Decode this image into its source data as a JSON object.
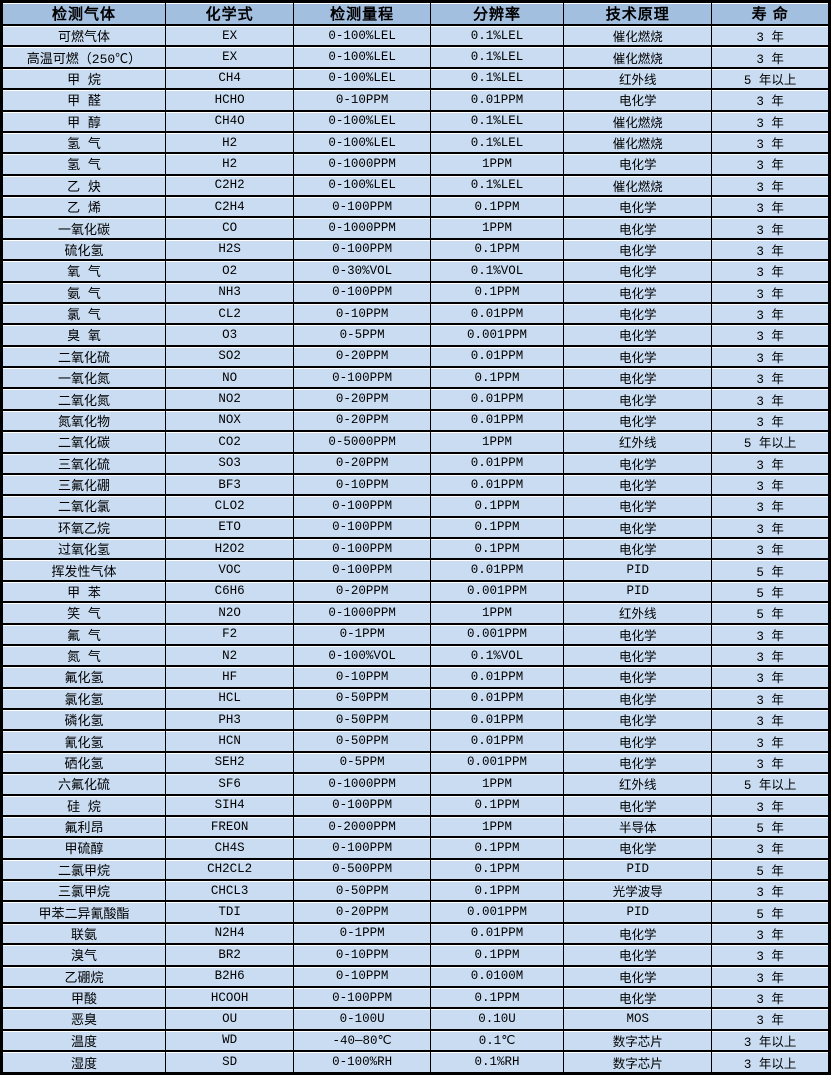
{
  "colors": {
    "header_bg": "#a3bfe0",
    "row_bg": "#c9dcf2",
    "border": "#000000",
    "text": "#000000"
  },
  "table": {
    "columns": [
      "检测气体",
      "化学式",
      "检测量程",
      "分辨率",
      "技术原理",
      "寿 命"
    ],
    "rows": [
      [
        "可燃气体",
        "EX",
        "0-100%LEL",
        "0.1%LEL",
        "催化燃烧",
        "3 年"
      ],
      [
        "高温可燃（250℃）",
        "EX",
        "0-100%LEL",
        "0.1%LEL",
        "催化燃烧",
        "3 年"
      ],
      [
        "甲 烷",
        "CH4",
        "0-100%LEL",
        "0.1%LEL",
        "红外线",
        "5 年以上"
      ],
      [
        "甲 醛",
        "HCHO",
        "0-10PPM",
        "0.01PPM",
        "电化学",
        "3 年"
      ],
      [
        "甲 醇",
        "CH4O",
        "0-100%LEL",
        "0.1%LEL",
        "催化燃烧",
        "3 年"
      ],
      [
        "氢 气",
        "H2",
        "0-100%LEL",
        "0.1%LEL",
        "催化燃烧",
        "3 年"
      ],
      [
        "氢 气",
        "H2",
        "0-1000PPM",
        "1PPM",
        "电化学",
        "3 年"
      ],
      [
        "乙 炔",
        "C2H2",
        "0-100%LEL",
        "0.1%LEL",
        "催化燃烧",
        "3 年"
      ],
      [
        "乙 烯",
        "C2H4",
        "0-100PPM",
        "0.1PPM",
        "电化学",
        "3 年"
      ],
      [
        "一氧化碳",
        "CO",
        "0-1000PPM",
        "1PPM",
        "电化学",
        "3 年"
      ],
      [
        "硫化氢",
        "H2S",
        "0-100PPM",
        "0.1PPM",
        "电化学",
        "3 年"
      ],
      [
        "氧 气",
        "O2",
        "0-30%VOL",
        "0.1%VOL",
        "电化学",
        "3 年"
      ],
      [
        "氨 气",
        "NH3",
        "0-100PPM",
        "0.1PPM",
        "电化学",
        "3 年"
      ],
      [
        "氯 气",
        "CL2",
        "0-10PPM",
        "0.01PPM",
        "电化学",
        "3 年"
      ],
      [
        "臭 氧",
        "O3",
        "0-5PPM",
        "0.001PPM",
        "电化学",
        "3 年"
      ],
      [
        "二氧化硫",
        "SO2",
        "0-20PPM",
        "0.01PPM",
        "电化学",
        "3 年"
      ],
      [
        "一氧化氮",
        "NO",
        "0-100PPM",
        "0.1PPM",
        "电化学",
        "3 年"
      ],
      [
        "二氧化氮",
        "NO2",
        "0-20PPM",
        "0.01PPM",
        "电化学",
        "3 年"
      ],
      [
        "氮氧化物",
        "NOX",
        "0-20PPM",
        "0.01PPM",
        "电化学",
        "3 年"
      ],
      [
        "二氧化碳",
        "CO2",
        "0-5000PPM",
        "1PPM",
        "红外线",
        "5 年以上"
      ],
      [
        "三氧化硫",
        "SO3",
        "0-20PPM",
        "0.01PPM",
        "电化学",
        "3 年"
      ],
      [
        "三氟化硼",
        "BF3",
        "0-10PPM",
        "0.01PPM",
        "电化学",
        "3 年"
      ],
      [
        "二氧化氯",
        "CLO2",
        "0-100PPM",
        "0.1PPM",
        "电化学",
        "3 年"
      ],
      [
        "环氧乙烷",
        "ETO",
        "0-100PPM",
        "0.1PPM",
        "电化学",
        "3 年"
      ],
      [
        "过氧化氢",
        "H2O2",
        "0-100PPM",
        "0.1PPM",
        "电化学",
        "3 年"
      ],
      [
        "挥发性气体",
        "VOC",
        "0-100PPM",
        "0.01PPM",
        "PID",
        "5 年"
      ],
      [
        "甲 苯",
        "C6H6",
        "0-20PPM",
        "0.001PPM",
        "PID",
        "5 年"
      ],
      [
        "笑 气",
        "N2O",
        "0-1000PPM",
        "1PPM",
        "红外线",
        "5 年"
      ],
      [
        "氟 气",
        "F2",
        "0-1PPM",
        "0.001PPM",
        "电化学",
        "3 年"
      ],
      [
        "氮 气",
        "N2",
        "0-100%VOL",
        "0.1%VOL",
        "电化学",
        "3 年"
      ],
      [
        "氟化氢",
        "HF",
        "0-10PPM",
        "0.01PPM",
        "电化学",
        "3 年"
      ],
      [
        "氯化氢",
        "HCL",
        "0-50PPM",
        "0.01PPM",
        "电化学",
        "3 年"
      ],
      [
        "磷化氢",
        "PH3",
        "0-50PPM",
        "0.01PPM",
        "电化学",
        "3 年"
      ],
      [
        "氰化氢",
        "HCN",
        "0-50PPM",
        "0.01PPM",
        "电化学",
        "3 年"
      ],
      [
        "硒化氢",
        "SEH2",
        "0-5PPM",
        "0.001PPM",
        "电化学",
        "3 年"
      ],
      [
        "六氟化硫",
        "SF6",
        "0-1000PPM",
        "1PPM",
        "红外线",
        "5 年以上"
      ],
      [
        "硅 烷",
        "SIH4",
        "0-100PPM",
        "0.1PPM",
        "电化学",
        "3 年"
      ],
      [
        "氟利昂",
        "FREON",
        "0-2000PPM",
        "1PPM",
        "半导体",
        "5 年"
      ],
      [
        "甲硫醇",
        "CH4S",
        "0-100PPM",
        "0.1PPM",
        "电化学",
        "3 年"
      ],
      [
        "二氯甲烷",
        "CH2CL2",
        "0-500PPM",
        "0.1PPM",
        "PID",
        "5 年"
      ],
      [
        "三氯甲烷",
        "CHCL3",
        "0-50PPM",
        "0.1PPM",
        "光学波导",
        "3 年"
      ],
      [
        "甲苯二异氰酸酯",
        "TDI",
        "0-20PPM",
        "0.001PPM",
        "PID",
        "5 年"
      ],
      [
        "联氨",
        "N2H4",
        "0-1PPM",
        "0.01PPM",
        "电化学",
        "3 年"
      ],
      [
        "溴气",
        "BR2",
        "0-10PPM",
        "0.1PPM",
        "电化学",
        "3 年"
      ],
      [
        "乙硼烷",
        "B2H6",
        "0-10PPM",
        "0.0100M",
        "电化学",
        "3 年"
      ],
      [
        "甲酸",
        "HCOOH",
        "0-100PPM",
        "0.1PPM",
        "电化学",
        "3 年"
      ],
      [
        "恶臭",
        "OU",
        "0-100U",
        "0.10U",
        "MOS",
        "3 年"
      ],
      [
        "温度",
        "WD",
        "-40—80℃",
        "0.1℃",
        "数字芯片",
        "3 年以上"
      ],
      [
        "湿度",
        "SD",
        "0-100%RH",
        "0.1%RH",
        "数字芯片",
        "3 年以上"
      ]
    ]
  }
}
